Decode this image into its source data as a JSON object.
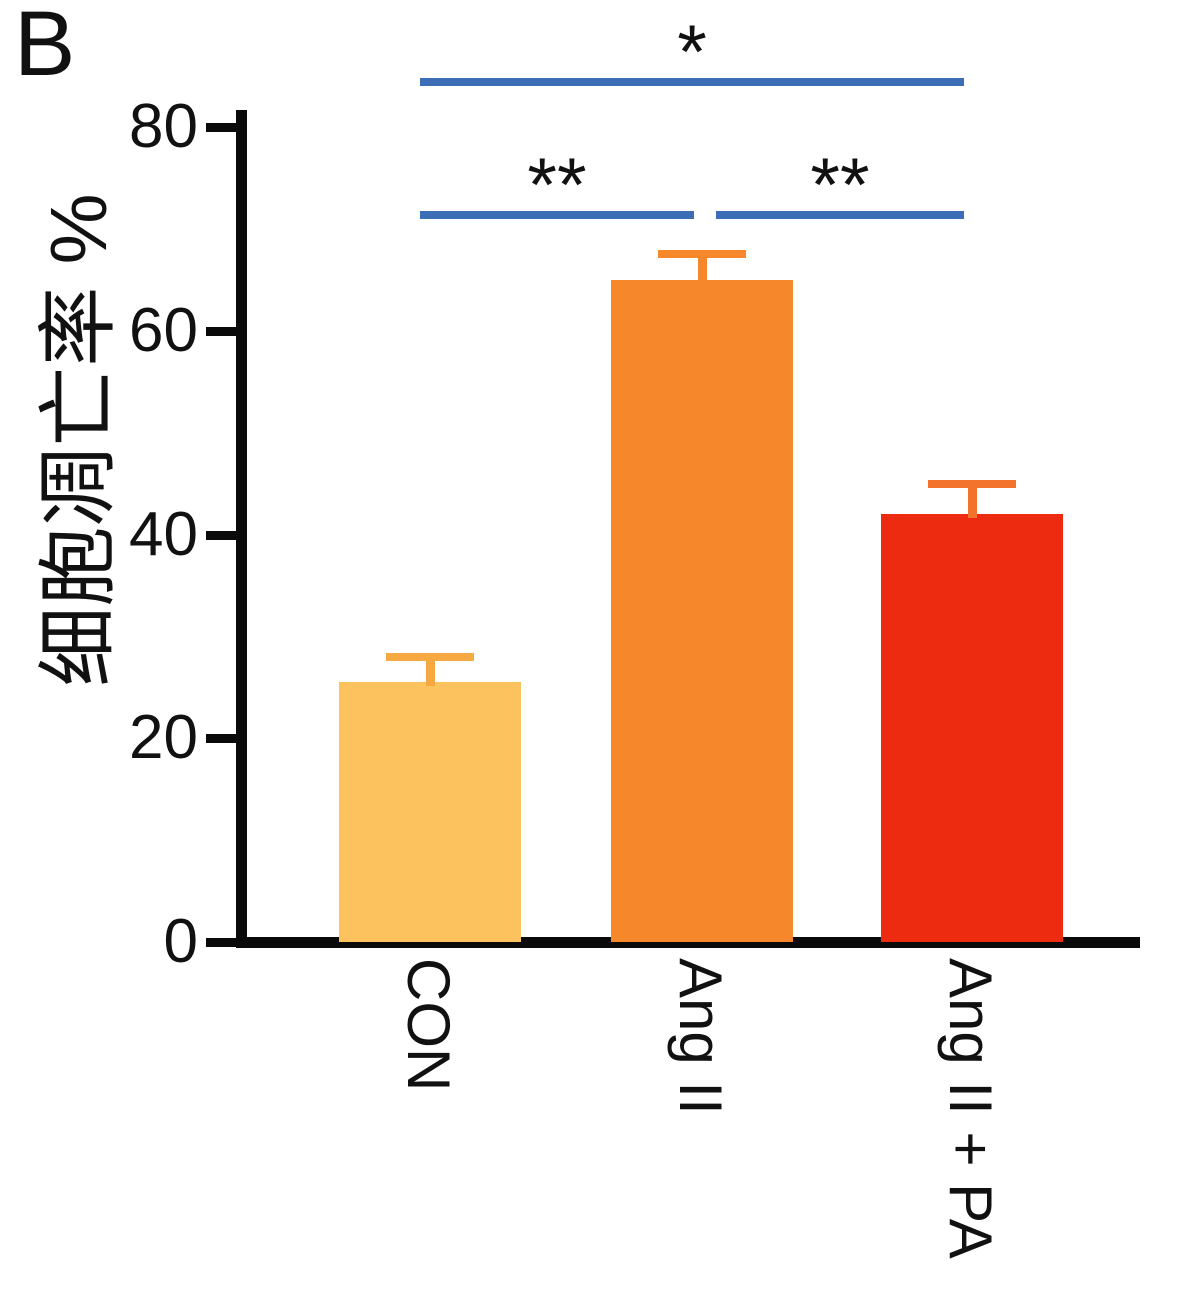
{
  "chart_data": {
    "type": "bar",
    "panel_label": "B",
    "title": "",
    "xlabel": "",
    "ylabel": "细胞凋亡率 %",
    "ylim": [
      0,
      80
    ],
    "yticks": [
      0,
      20,
      40,
      60,
      80
    ],
    "categories": [
      "CON",
      "Ang II",
      "Ang II + PA"
    ],
    "values": [
      25.5,
      65,
      42
    ],
    "errors": [
      2.5,
      2.5,
      3
    ],
    "bar_colors": [
      "#FCC25E",
      "#F6872B",
      "#EC2B10"
    ],
    "error_bar_colors": [
      "#F6A843",
      "#F6872B",
      "#F4732C"
    ],
    "significance": [
      {
        "from": 0,
        "to": 2,
        "label": "*",
        "y": 84.5
      },
      {
        "from": 0,
        "to": 1,
        "label": "**",
        "y": 71.5
      },
      {
        "from": 1,
        "to": 2,
        "label": "**",
        "y": 71.5
      }
    ],
    "colors": {
      "significance_line": "#3B6EB5",
      "axis": "#0a0a0a",
      "text": "#111111"
    },
    "legend": "none",
    "grid": "off"
  }
}
